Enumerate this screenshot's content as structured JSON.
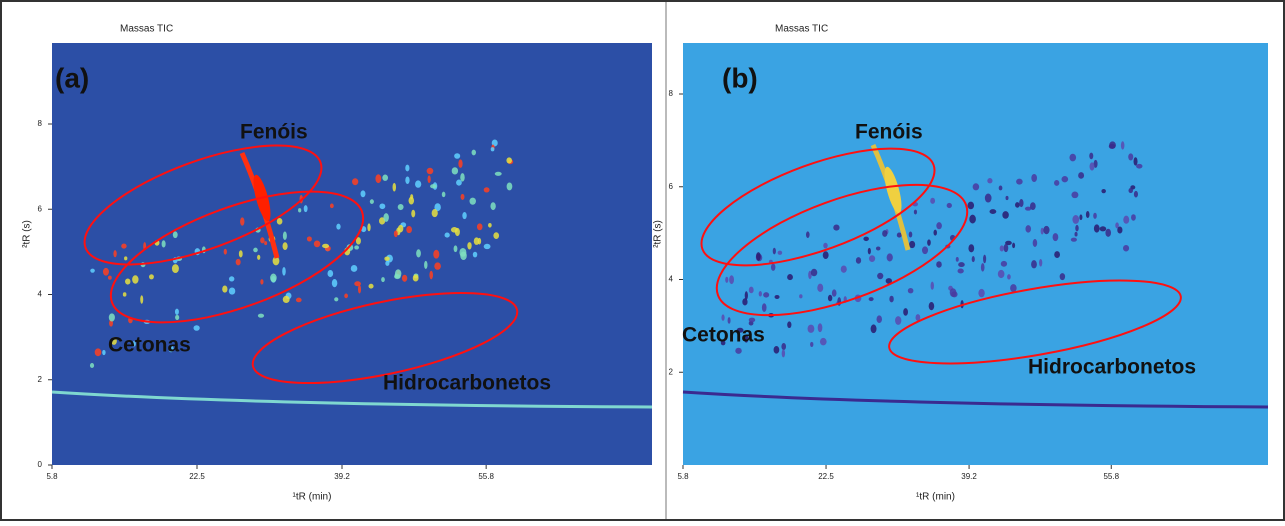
{
  "chart_data": [
    {
      "type": "contour",
      "title": "Massas TIC",
      "panel_label": "(a)",
      "x_label": "¹tR (min)",
      "y_label": "²tR (s)",
      "annotations": [
        "Fenóis",
        "Cetonas",
        "Hidrocarbonetos"
      ],
      "xlim": [
        5.8,
        74.9
      ],
      "ylim": [
        0,
        9.9
      ],
      "xticks": [
        5.8,
        22.5,
        39.2,
        55.8
      ],
      "yticks": [
        0,
        2,
        4,
        6,
        8
      ],
      "color": "#2c4fa6"
    },
    {
      "type": "contour",
      "title": "Massas TIC",
      "panel_label": "(b)",
      "x_label": "¹tR (min)",
      "y_label": "²tR (s)",
      "annotations": [
        "Fenóis",
        "Cetonas",
        "Hidrocarbonetos"
      ],
      "xlim": [
        5.8,
        74.1
      ],
      "ylim": [
        0,
        9.1
      ],
      "xticks": [
        5.8,
        22.5,
        39.2,
        55.8
      ],
      "yticks": [
        2,
        4,
        6,
        8
      ],
      "color": "#3aa3e3"
    }
  ]
}
